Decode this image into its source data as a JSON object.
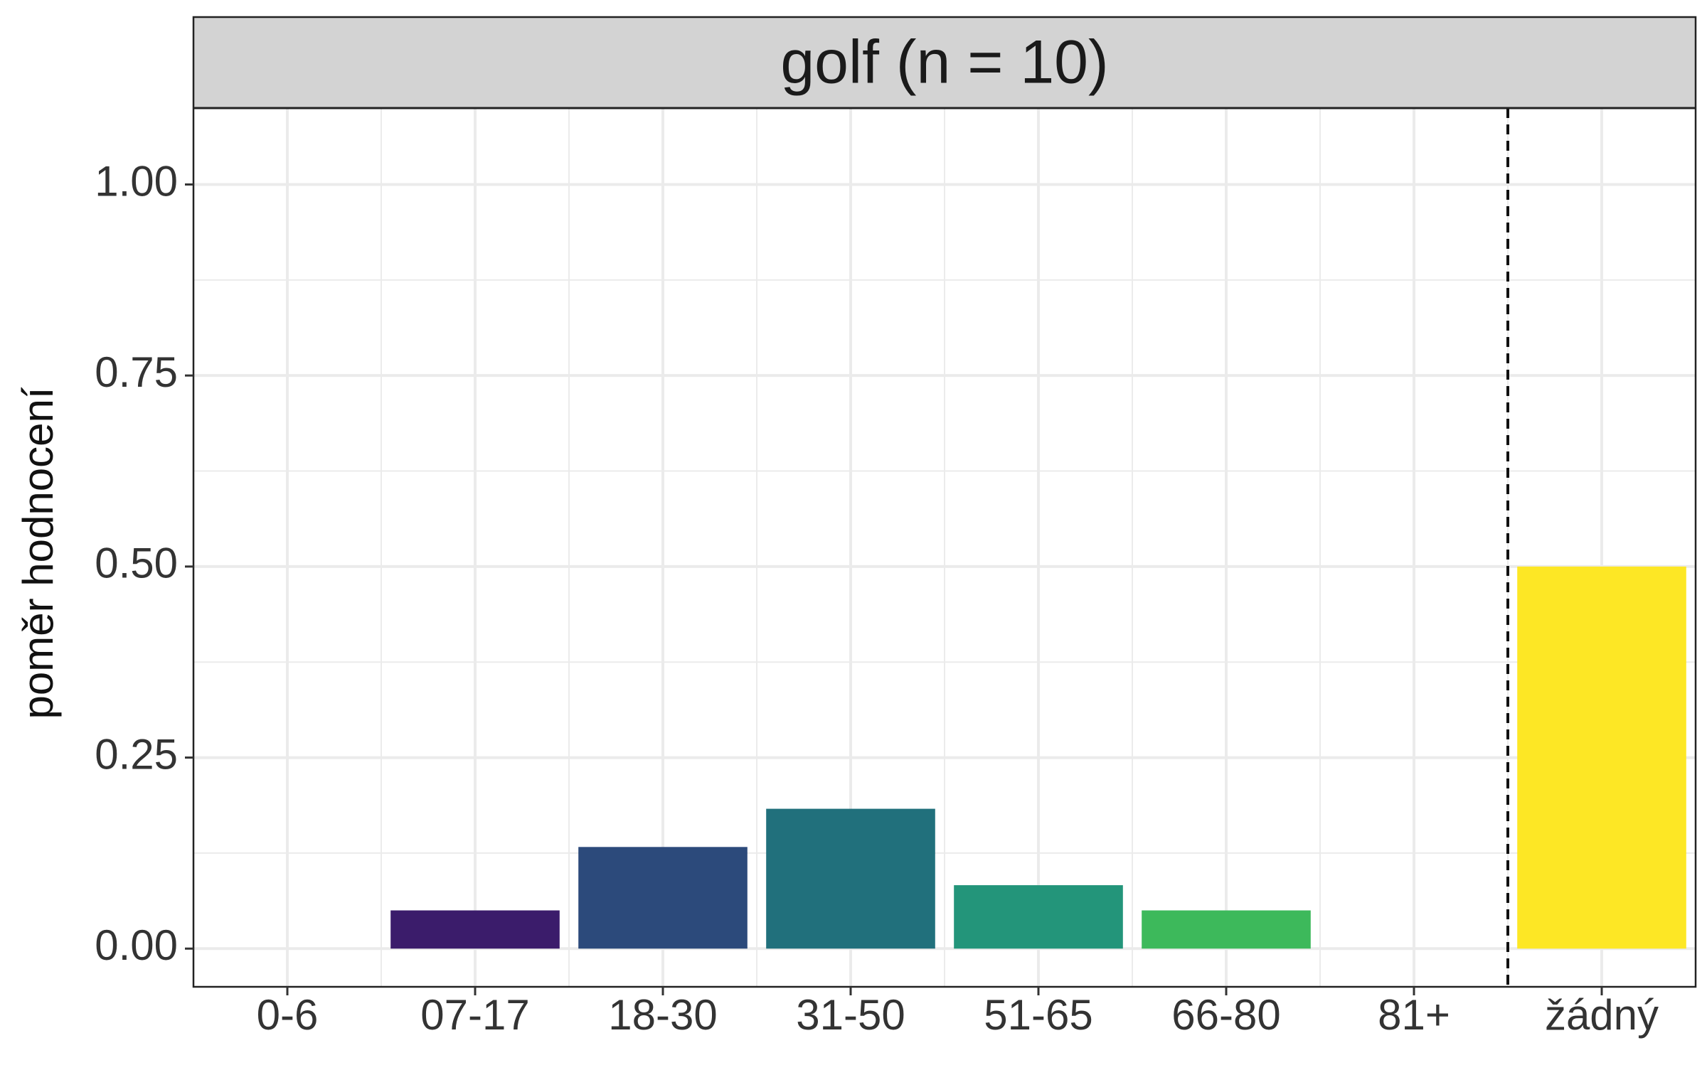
{
  "chart_data": {
    "type": "bar",
    "facet_title": "golf (n = 10)",
    "xlabel": "",
    "ylabel": "poměr hodnocení",
    "categories": [
      "0-6",
      "07-17",
      "18-30",
      "31-50",
      "51-65",
      "66-80",
      "81+",
      "žádný"
    ],
    "values": [
      0.0,
      0.05,
      0.133,
      0.183,
      0.083,
      0.05,
      0.0,
      0.5
    ],
    "colors": [
      "#440154",
      "#3B1C6B",
      "#2C4A7B",
      "#21707C",
      "#23957A",
      "#3DB95B",
      "#8FD744",
      "#FDE725"
    ],
    "ylim": [
      -0.05,
      1.1
    ],
    "yticks": [
      0.0,
      0.25,
      0.5,
      0.75,
      1.0
    ],
    "ytick_labels": [
      "0.00",
      "0.25",
      "0.50",
      "0.75",
      "1.00"
    ],
    "separator": {
      "between": [
        "81+",
        "žádný"
      ],
      "style": "dashed"
    },
    "grid": true,
    "panel_background": "#FFFFFF",
    "strip_background": "#D3D3D3",
    "grid_color": "#EBEBEB"
  }
}
